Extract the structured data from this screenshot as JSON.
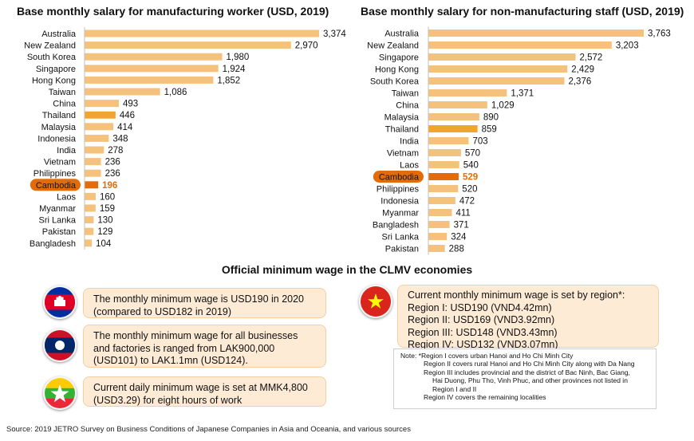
{
  "chart_data": [
    {
      "type": "bar",
      "orientation": "horizontal",
      "title": "Base monthly salary for manufacturing worker (USD, 2019)",
      "categories": [
        "Australia",
        "New Zealand",
        "South Korea",
        "Singapore",
        "Hong Kong",
        "Taiwan",
        "China",
        "Thailand",
        "Malaysia",
        "Indonesia",
        "India",
        "Vietnam",
        "Philippines",
        "Cambodia",
        "Laos",
        "Myanmar",
        "Sri Lanka",
        "Pakistan",
        "Bangladesh"
      ],
      "values": [
        3374,
        2970,
        1980,
        1924,
        1852,
        1086,
        493,
        446,
        414,
        348,
        278,
        236,
        236,
        196,
        160,
        159,
        130,
        129,
        104
      ],
      "value_labels": [
        "3,374",
        "2,970",
        "1,980",
        "1,924",
        "1,852",
        "1,086",
        "493",
        "446",
        "414",
        "348",
        "278",
        "236",
        "236",
        "196",
        "160",
        "159",
        "130",
        "129",
        "104"
      ],
      "highlight": {
        "Thailand": "#f2a52e",
        "Cambodia": "#e36c0a"
      },
      "bar_color": "#f5c27d",
      "highlight_label": "Cambodia"
    },
    {
      "type": "bar",
      "orientation": "horizontal",
      "title": "Base monthly salary for non-manufacturing staff (USD, 2019)",
      "categories": [
        "Australia",
        "New Zealand",
        "Singapore",
        "Hong Kong",
        "South Korea",
        "Taiwan",
        "China",
        "Malaysia",
        "Thailand",
        "India",
        "Vietnam",
        "Laos",
        "Cambodia",
        "Philippines",
        "Indonesia",
        "Myanmar",
        "Bangladesh",
        "Sri Lanka",
        "Pakistan"
      ],
      "values": [
        3763,
        3203,
        2572,
        2429,
        2376,
        1371,
        1029,
        890,
        859,
        703,
        570,
        540,
        529,
        520,
        472,
        411,
        371,
        324,
        288
      ],
      "value_labels": [
        "3,763",
        "3,203",
        "2,572",
        "2,429",
        "2,376",
        "1,371",
        "1,029",
        "890",
        "859",
        "703",
        "570",
        "540",
        "529",
        "520",
        "472",
        "411",
        "371",
        "324",
        "288"
      ],
      "highlight": {
        "Thailand": "#f2a52e",
        "Cambodia": "#e36c0a"
      },
      "bar_color": "#f5c27d",
      "highlight_label": "Cambodia"
    }
  ],
  "section_title": "Official minimum wage in the CLMV economies",
  "cambodia": {
    "lines": [
      "The monthly minimum wage is USD190 in 2020",
      "(compared to USD182 in 2019)"
    ]
  },
  "laos": {
    "lines": [
      "The monthly minimum wage for all businesses",
      "and factories is ranged from LAK900,000",
      "(USD101) to LAK1.1mn (USD124)."
    ]
  },
  "myanmar": {
    "lines": [
      "Current daily minimum wage is set at MMK4,800",
      "(USD3.29) for eight hours of work"
    ]
  },
  "vietnam": {
    "lines": [
      "Current monthly minimum wage is set by region*:",
      "Region I:   USD190 (VND4.42mn)",
      "Region II:  USD169 (VND3.92mn)",
      "Region III: USD148 (VND3.43mn)",
      "Region IV:  USD132 (VND3.07mn)"
    ]
  },
  "note": {
    "lines": [
      "Note: *Region I covers urban Hanoi and Ho Chi Minh City",
      "Region II covers rural Hanoi and Ho Chi Minh City along with Da Nang",
      "Region III includes provincial and the district of Bac Ninh, Bac Giang,",
      "Hai Duong, Phu Tho, Vinh Phuc, and other provinces not listed in",
      "Region I and II",
      "Region IV covers the remaining  localities"
    ]
  },
  "source": "Source: 2019 JETRO Survey on Business Conditions of Japanese Companies in Asia and Oceania, and various sources",
  "flags": [
    "cambodia-flag-icon",
    "laos-flag-icon",
    "myanmar-flag-icon",
    "vietnam-flag-icon"
  ]
}
